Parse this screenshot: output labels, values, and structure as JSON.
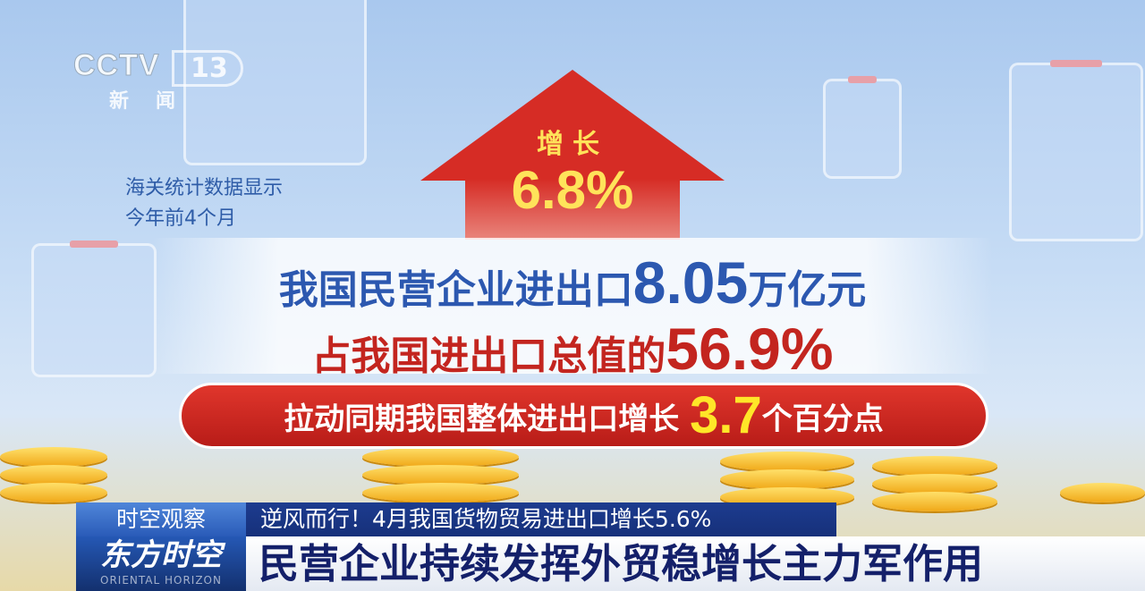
{
  "logo": {
    "channel": "CCTV",
    "number": "13",
    "subtitle": "新闻"
  },
  "intro": {
    "line1": "海关统计数据显示",
    "line2": "今年前4个月"
  },
  "arrow": {
    "label": "增长",
    "value": "6.8%"
  },
  "stat1": {
    "prefix": "我国民营企业进出口",
    "value": "8.05",
    "unit": "万亿元"
  },
  "stat2": {
    "prefix": "占我国进出口总值的",
    "value": "56.9%"
  },
  "stat3": {
    "prefix": "拉动同期我国整体进出口增长",
    "value": "3.7",
    "unit": "个百分点"
  },
  "ticker": {
    "segment_label": "时空观察",
    "headline": "逆风而行！4月我国货物贸易进出口增长5.6%",
    "program_name": "东方时空",
    "program_name_en": "ORIENTAL HORIZON",
    "main_title": "民营企业持续发挥外贸稳增长主力军作用"
  },
  "colors": {
    "red": "#d62c25",
    "blue": "#2c58b0",
    "yellow": "#ffe628",
    "navy": "#16307a"
  }
}
